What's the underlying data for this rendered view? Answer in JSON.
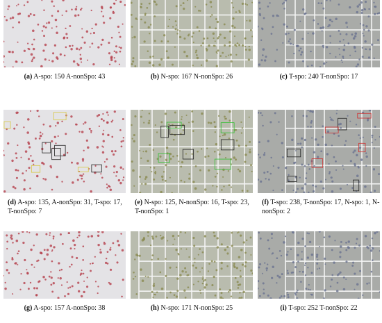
{
  "panels": [
    {
      "label": "(a)",
      "caption": "A-spo: 150 A-nonSpo: 43"
    },
    {
      "label": "(b)",
      "caption": "N-spo: 167 N-nonSpo: 26"
    },
    {
      "label": "(c)",
      "caption": "T-spo: 240 T-nonSpo: 17"
    },
    {
      "label": "(d)",
      "caption": "A-spo: 135, A-nonSpo: 31, T-spo: 17, T-nonSpo: 7"
    },
    {
      "label": "(e)",
      "caption": "N-spo: 125, N-nonSpo: 16, T-spo: 23, T-nonSpo: 1"
    },
    {
      "label": "(f)",
      "caption": "T-spo: 238, T-nonSpo: 17, N-spo: 1, N-nonSpo: 2"
    },
    {
      "label": "(g)",
      "caption": "A-spo: 157 A-nonSpo: 38"
    },
    {
      "label": "(h)",
      "caption": "N-spo: 171 N-nonSpo: 25"
    },
    {
      "label": "(i)",
      "caption": "T-spo: 252 T-nonSpo: 22"
    }
  ]
}
